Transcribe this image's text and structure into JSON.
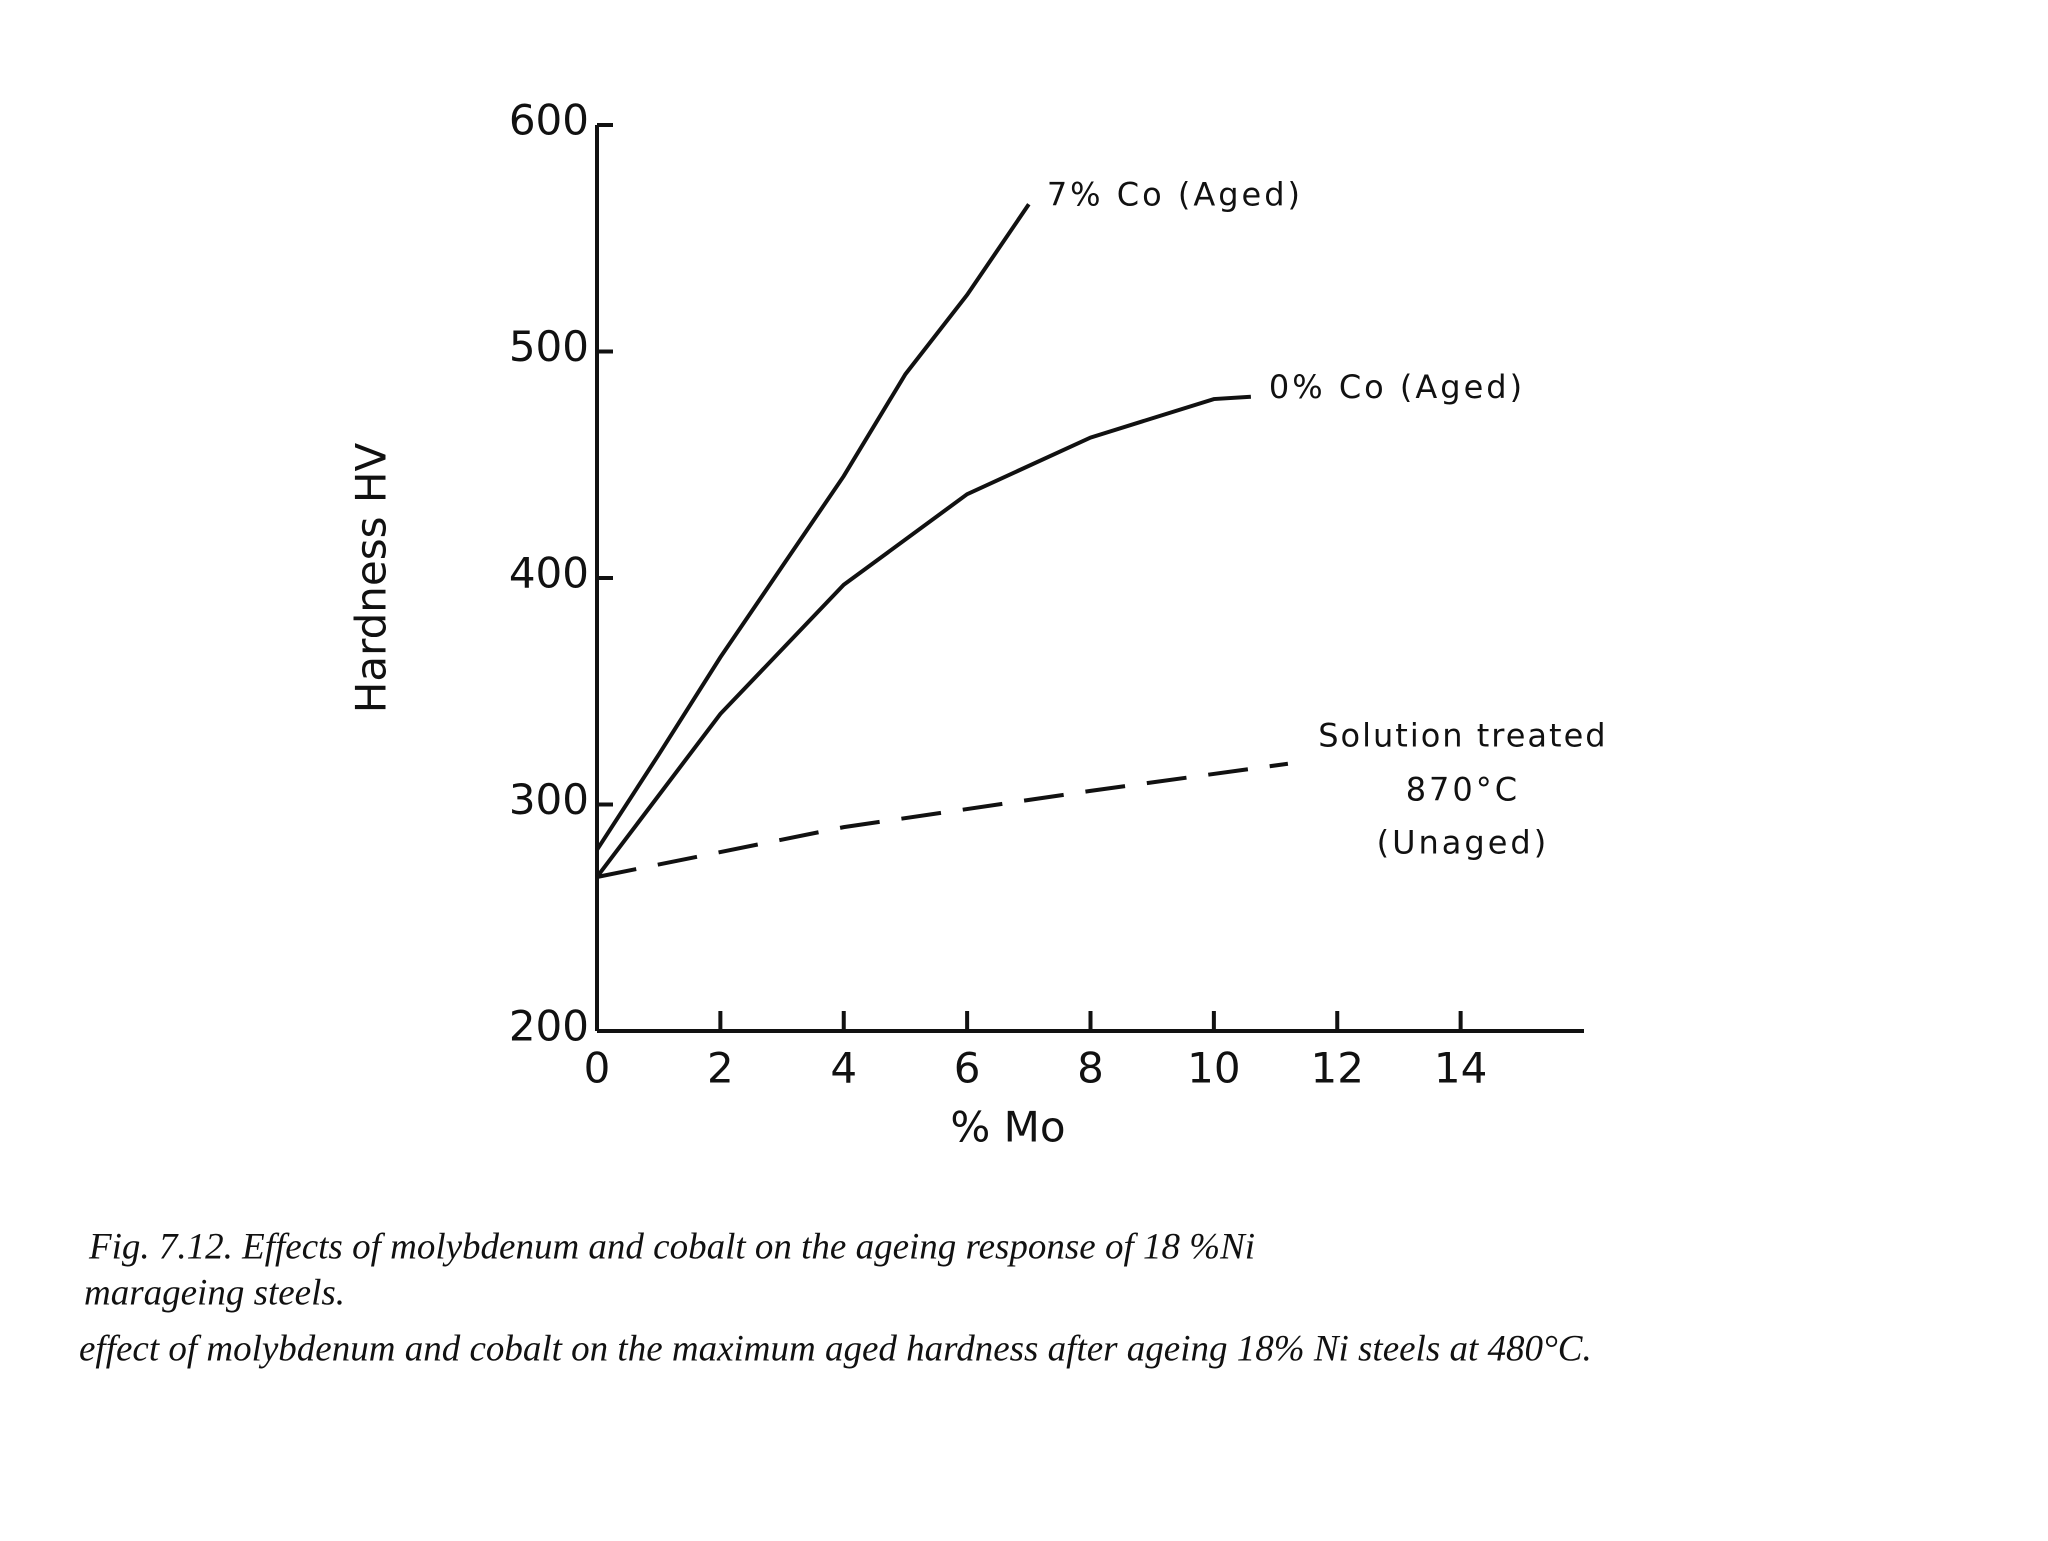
{
  "chart_data": {
    "type": "line",
    "x_label": "% Mo",
    "y_label": "Hardness HV",
    "xlim": [
      0,
      16
    ],
    "xticks": [
      0,
      2,
      4,
      6,
      8,
      10,
      12,
      14
    ],
    "ylim": [
      200,
      600
    ],
    "yticks": [
      200,
      300,
      400,
      500,
      600
    ],
    "grid": false,
    "series": [
      {
        "name": "7% Co (Aged)",
        "color": "#111111",
        "dash": "solid",
        "x": [
          0,
          1,
          2,
          3,
          4,
          5,
          6,
          7
        ],
        "values": [
          280,
          322,
          365,
          405,
          445,
          490,
          525,
          565
        ]
      },
      {
        "name": "0% Co (Aged)",
        "color": "#111111",
        "dash": "solid",
        "x": [
          0,
          2,
          4,
          6,
          8,
          10,
          10.6
        ],
        "values": [
          268,
          340,
          397,
          437,
          462,
          479,
          480
        ]
      },
      {
        "name": "Solution treated",
        "sublabels": [
          "870°C",
          "(Unaged)"
        ],
        "color": "#111111",
        "dash": "dashed",
        "x": [
          0,
          4,
          8,
          11.2
        ],
        "values": [
          268,
          290,
          306,
          318
        ]
      }
    ]
  },
  "caption": {
    "lines": [
      "Fig. 7.12.   Effects of molybdenum and cobalt on the ageing response of 18 %Ni",
      "marageing steels.",
      "effect of molybdenum and cobalt on the maximum aged hardness after ageing 18% Ni steels at 480°C."
    ]
  }
}
